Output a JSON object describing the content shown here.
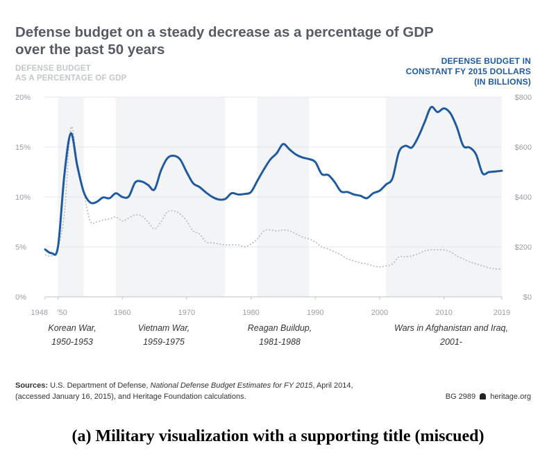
{
  "header": {
    "title_line1": "Defense budget on a steady decrease as a percentage of GDP",
    "title_line2": "over the past 50 years",
    "left_axis_title_line1": "DEFENSE BUDGET",
    "left_axis_title_line2": "AS A PERCENTAGE OF GDP",
    "right_axis_title_line1": "DEFENSE BUDGET IN",
    "right_axis_title_line2": "CONSTANT FY 2015 DOLLARS",
    "right_axis_title_line3": "(IN BILLIONS)"
  },
  "eras": [
    {
      "name": "Korean War,",
      "years": "1950-1953"
    },
    {
      "name": "Vietnam War,",
      "years": "1959-1975"
    },
    {
      "name": "Reagan Buildup,",
      "years": "1981-1988"
    },
    {
      "name": "Wars in Afghanistan and Iraq,",
      "years": "2001-"
    }
  ],
  "footer": {
    "sources_label": "Sources:",
    "sources_text1": "U.S. Department of Defense,",
    "sources_italic": "National Defense Budget Estimates for FY 2015",
    "sources_text2": ", April 2014,",
    "sources_line2": "(accessed January 16, 2015), and Heritage Foundation calculations.",
    "bg_code": "BG 2989",
    "site": "heritage.org",
    "caption": "(a) Military visualization with a supporting title (miscued)"
  },
  "colors": {
    "budget_line": "#1f5aa0",
    "gdp_line": "#b5b8bb",
    "era_shade": "#f3f4f5",
    "grid": "#e6e7e8",
    "axis_text": "#9a9ea2"
  },
  "chart_data": {
    "type": "line",
    "title": "Defense budget on a steady decrease as a percentage of GDP over the past 50 years",
    "x_ticks": [
      "1948",
      "'50",
      "1960",
      "1970",
      "1980",
      "1990",
      "2000",
      "2010",
      "2019"
    ],
    "x_tick_values": [
      1948,
      1950,
      1960,
      1970,
      1980,
      1990,
      2000,
      2010,
      2019
    ],
    "xlim": [
      1948,
      2019
    ],
    "y_left": {
      "label": "DEFENSE BUDGET AS A PERCENTAGE OF GDP",
      "ticks": [
        "0%",
        "5%",
        "10%",
        "15%",
        "20%"
      ],
      "tick_values": [
        0,
        5,
        10,
        15,
        20
      ],
      "ylim": [
        0,
        20
      ]
    },
    "y_right": {
      "label": "DEFENSE BUDGET IN CONSTANT FY 2015 DOLLARS (IN BILLIONS)",
      "ticks": [
        "$0",
        "$200",
        "$400",
        "$600",
        "$800"
      ],
      "tick_values": [
        0,
        200,
        400,
        600,
        800
      ],
      "ylim": [
        0,
        800
      ]
    },
    "shaded_periods": [
      [
        1950,
        1954
      ],
      [
        1959,
        1976
      ],
      [
        1981,
        1989
      ],
      [
        2001,
        2019
      ]
    ],
    "series": [
      {
        "axis": "right",
        "x": [
          1948,
          1949,
          1950,
          1951,
          1952,
          1953,
          1954,
          1955,
          1956,
          1957,
          1958,
          1959,
          1960,
          1961,
          1962,
          1963,
          1964,
          1965,
          1966,
          1967,
          1968,
          1969,
          1970,
          1971,
          1972,
          1973,
          1974,
          1975,
          1976,
          1977,
          1978,
          1979,
          1980,
          1981,
          1982,
          1983,
          1984,
          1985,
          1986,
          1987,
          1988,
          1989,
          1990,
          1991,
          1992,
          1993,
          1994,
          1995,
          1996,
          1997,
          1998,
          1999,
          2000,
          2001,
          2002,
          2003,
          2004,
          2005,
          2006,
          2007,
          2008,
          2009,
          2010,
          2011,
          2012,
          2013,
          2014,
          2015,
          2016,
          2017,
          2018,
          2019
        ],
        "values": [
          190,
          175,
          200,
          490,
          655,
          525,
          420,
          378,
          380,
          398,
          395,
          415,
          400,
          402,
          458,
          462,
          448,
          430,
          505,
          555,
          565,
          550,
          500,
          455,
          440,
          418,
          400,
          390,
          392,
          415,
          410,
          412,
          420,
          465,
          510,
          550,
          575,
          612,
          590,
          570,
          558,
          552,
          540,
          492,
          488,
          460,
          422,
          420,
          410,
          405,
          395,
          415,
          425,
          450,
          475,
          580,
          605,
          598,
          640,
          700,
          760,
          740,
          755,
          735,
          680,
          605,
          598,
          570,
          495,
          500,
          502,
          505
        ]
      },
      {
        "axis": "left",
        "x": [
          1948,
          1949,
          1950,
          1951,
          1952,
          1953,
          1954,
          1955,
          1956,
          1957,
          1958,
          1959,
          1960,
          1961,
          1962,
          1963,
          1964,
          1965,
          1966,
          1967,
          1968,
          1969,
          1970,
          1971,
          1972,
          1973,
          1974,
          1975,
          1976,
          1977,
          1978,
          1979,
          1980,
          1981,
          1982,
          1983,
          1984,
          1985,
          1986,
          1987,
          1988,
          1989,
          1990,
          1991,
          1992,
          1993,
          1994,
          1995,
          1996,
          1997,
          1998,
          1999,
          2000,
          2001,
          2002,
          2003,
          2004,
          2005,
          2006,
          2007,
          2008,
          2009,
          2010,
          2011,
          2012,
          2013,
          2014,
          2015,
          2016,
          2017,
          2018,
          2019
        ],
        "values": [
          4.2,
          4.1,
          4.9,
          8.4,
          16.9,
          13.5,
          10.5,
          7.6,
          7.5,
          7.7,
          7.8,
          8.0,
          7.6,
          7.9,
          8.2,
          8.1,
          7.5,
          6.8,
          7.5,
          8.5,
          8.6,
          8.3,
          7.6,
          6.6,
          6.3,
          5.5,
          5.4,
          5.3,
          5.2,
          5.2,
          5.2,
          5.0,
          5.3,
          5.8,
          6.6,
          6.7,
          6.6,
          6.7,
          6.6,
          6.3,
          6.0,
          5.8,
          5.5,
          5.0,
          4.8,
          4.5,
          4.2,
          3.8,
          3.6,
          3.4,
          3.3,
          3.1,
          3.0,
          3.1,
          3.3,
          4.0,
          4.0,
          4.1,
          4.3,
          4.6,
          4.7,
          4.7,
          4.7,
          4.5,
          4.1,
          3.8,
          3.5,
          3.3,
          3.1,
          2.9,
          2.8,
          2.8
        ]
      }
    ]
  }
}
